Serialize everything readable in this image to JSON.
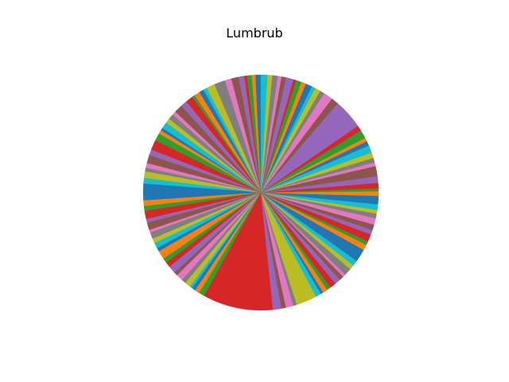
{
  "chart_data": {
    "type": "pie",
    "title": "Lumbrub",
    "start_angle_deg": 90,
    "direction": "counterclockwise",
    "palette": [
      "#1f77b4",
      "#ff7f0e",
      "#2ca02c",
      "#d62728",
      "#9467bd",
      "#8c564b",
      "#e377c2",
      "#7f7f7f",
      "#bcbd22",
      "#17becf"
    ],
    "slice_edges": "none",
    "values": [
      0.6,
      0.4,
      0.5,
      0.3,
      0.6,
      0.8,
      0.7,
      1.2,
      0.9,
      0.4,
      0.5,
      0.6,
      0.3,
      0.8,
      0.7,
      0.9,
      0.4,
      0.6,
      0.5,
      0.7,
      0.3,
      0.4,
      0.8,
      1.1,
      0.6,
      0.9,
      0.5,
      0.4,
      0.7,
      0.6,
      1.8,
      0.6,
      0.5,
      0.9,
      0.4,
      0.8,
      0.3,
      0.7,
      0.5,
      0.6,
      0.4,
      0.9,
      0.5,
      0.6,
      0.8,
      0.4,
      0.7,
      0.5,
      0.6,
      0.3,
      0.4,
      0.5,
      0.6,
      7.6,
      0.9,
      0.5,
      0.8,
      0.4,
      2.2,
      0.6,
      0.3,
      0.5,
      0.4,
      0.7,
      0.6,
      0.5,
      0.3,
      0.8,
      0.5,
      0.6,
      1.4,
      0.6,
      0.4,
      0.8,
      0.5,
      0.6,
      0.7,
      0.5,
      0.4,
      0.6,
      0.9,
      0.5,
      0.3,
      0.6,
      0.7,
      1.1,
      0.4,
      0.5,
      0.6,
      0.8,
      0.5,
      0.4,
      0.9,
      0.6,
      3.2,
      0.8,
      1.0,
      0.5,
      0.6,
      0.4,
      0.7,
      0.5,
      0.6,
      0.3,
      0.8,
      0.5,
      0.4,
      0.6,
      0.5,
      0.7
    ]
  }
}
